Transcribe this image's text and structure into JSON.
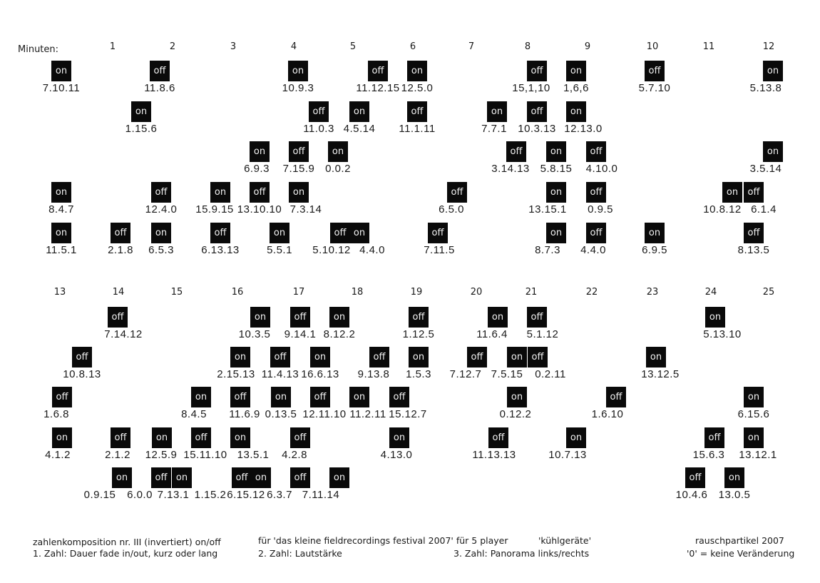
{
  "minutes_label": "Minuten:",
  "minutes_top": [
    "1",
    "2",
    "3",
    "4",
    "5",
    "6",
    "7",
    "8",
    "9",
    "10",
    "11",
    "12"
  ],
  "minutes_bottom": [
    "13",
    "14",
    "15",
    "16",
    "17",
    "18",
    "19",
    "20",
    "21",
    "22",
    "23",
    "24",
    "25"
  ],
  "events_top": [
    {
      "state": "on",
      "code": "7.10.11"
    },
    {
      "state": "off",
      "code": "11.8.6"
    },
    {
      "state": "on",
      "code": "10.9.3"
    },
    {
      "state": "off",
      "code": "11.12.15"
    },
    {
      "state": "on",
      "code": "12.5.0"
    },
    {
      "state": "off",
      "code": "15,1,10"
    },
    {
      "state": "on",
      "code": "1,6,6"
    },
    {
      "state": "off",
      "code": "5.7.10"
    },
    {
      "state": "on",
      "code": "5.13.8"
    },
    {
      "state": "on",
      "code": "1.15.6"
    },
    {
      "state": "off",
      "code": "11.0.3"
    },
    {
      "state": "on",
      "code": "4.5.14"
    },
    {
      "state": "off",
      "code": "11.1.11"
    },
    {
      "state": "on",
      "code": "7.7.1"
    },
    {
      "state": "off",
      "code": "10.3.13"
    },
    {
      "state": "on",
      "code": "12.13.0"
    },
    {
      "state": "on",
      "code": "6.9.3"
    },
    {
      "state": "off",
      "code": "7.15.9"
    },
    {
      "state": "on",
      "code": "0.0.2"
    },
    {
      "state": "off",
      "code": "3.14.13"
    },
    {
      "state": "on",
      "code": "5.8.15"
    },
    {
      "state": "off",
      "code": "4.10.0"
    },
    {
      "state": "on",
      "code": "3.5.14"
    },
    {
      "state": "on",
      "code": "8.4.7"
    },
    {
      "state": "off",
      "code": "12.4.0"
    },
    {
      "state": "on",
      "code": "15.9.15"
    },
    {
      "state": "off",
      "code": "13.10.10"
    },
    {
      "state": "on",
      "code": "7.3.14"
    },
    {
      "state": "off",
      "code": "6.5.0"
    },
    {
      "state": "on",
      "code": "13.15.1"
    },
    {
      "state": "off",
      "code": "0.9.5"
    },
    {
      "state": "on",
      "code": "10.8.12"
    },
    {
      "state": "off",
      "code": "6.1.4"
    },
    {
      "state": "on",
      "code": "11.5.1"
    },
    {
      "state": "off",
      "code": "2.1.8"
    },
    {
      "state": "on",
      "code": "6.5.3"
    },
    {
      "state": "off",
      "code": "6.13.13"
    },
    {
      "state": "on",
      "code": "5.5.1"
    },
    {
      "state": "off",
      "code": "5.10.12"
    },
    {
      "state": "on",
      "code": "4.4.0"
    },
    {
      "state": "off",
      "code": "7.11.5"
    },
    {
      "state": "on",
      "code": "8.7.3"
    },
    {
      "state": "off",
      "code": "4.4.0"
    },
    {
      "state": "on",
      "code": "6.9.5"
    },
    {
      "state": "off",
      "code": "8.13.5"
    }
  ],
  "events_bottom": [
    {
      "state": "off",
      "code": "7.14.12"
    },
    {
      "state": "on",
      "code": "10.3.5"
    },
    {
      "state": "off",
      "code": "9.14.1"
    },
    {
      "state": "on",
      "code": "8.12.2"
    },
    {
      "state": "off",
      "code": "1.12.5"
    },
    {
      "state": "on",
      "code": "11.6.4"
    },
    {
      "state": "off",
      "code": "5.1.12"
    },
    {
      "state": "on",
      "code": "5.13.10"
    },
    {
      "state": "off",
      "code": "10.8.13"
    },
    {
      "state": "on",
      "code": "2.15.13"
    },
    {
      "state": "off",
      "code": "11.4.13"
    },
    {
      "state": "on",
      "code": "16.6.13"
    },
    {
      "state": "off",
      "code": "9.13.8"
    },
    {
      "state": "on",
      "code": "1.5.3"
    },
    {
      "state": "off",
      "code": "7.12.7"
    },
    {
      "state": "on",
      "code": "7.5.15"
    },
    {
      "state": "off",
      "code": "0.2.11"
    },
    {
      "state": "on",
      "code": "13.12.5"
    },
    {
      "state": "off",
      "code": "1.6.8"
    },
    {
      "state": "on",
      "code": "8.4.5"
    },
    {
      "state": "off",
      "code": "11.6.9"
    },
    {
      "state": "on",
      "code": "0.13.5"
    },
    {
      "state": "off",
      "code": "12.11.10"
    },
    {
      "state": "on",
      "code": "11.2.11"
    },
    {
      "state": "off",
      "code": "15.12.7"
    },
    {
      "state": "on",
      "code": "0.12.2"
    },
    {
      "state": "off",
      "code": "1.6.10"
    },
    {
      "state": "on",
      "code": "6.15.6"
    },
    {
      "state": "on",
      "code": "4.1.2"
    },
    {
      "state": "off",
      "code": "2.1.2"
    },
    {
      "state": "on",
      "code": "12.5.9"
    },
    {
      "state": "off",
      "code": "15.11.10"
    },
    {
      "state": "on",
      "code": "13.5.1"
    },
    {
      "state": "off",
      "code": "4.2.8"
    },
    {
      "state": "on",
      "code": "4.13.0"
    },
    {
      "state": "off",
      "code": "11.13.13"
    },
    {
      "state": "on",
      "code": "10.7.13"
    },
    {
      "state": "off",
      "code": "15.6.3"
    },
    {
      "state": "on",
      "code": "13.12.1"
    },
    {
      "state": "on",
      "code": "0.9.15"
    },
    {
      "state": "off",
      "code": "6.0.0"
    },
    {
      "state": "on",
      "code": "7.13.1"
    },
    {
      "state": "off",
      "code": "1.15.2"
    },
    {
      "state": "on",
      "code": "6.15.12"
    },
    {
      "state": "off",
      "code": "6.3.7"
    },
    {
      "state": "on",
      "code": "7.11.14"
    },
    {
      "state": "off",
      "code": "10.4.6"
    },
    {
      "state": "on",
      "code": "13.0.5"
    }
  ],
  "footer": {
    "title": "zahlenkomposition nr. III (invertiert) on/off",
    "legend_1": "1. Zahl: Dauer fade in/out, kurz oder lang",
    "dedication": "für 'das kleine fieldrecordings festival 2007' für 5 player",
    "subtitle": "'kühlgeräte'",
    "legend_2": "2. Zahl: Lautstärke",
    "legend_3": "3. Zahl: Panorama links/rechts",
    "author": "rauschpartikel 2007",
    "legend_0": "'0' = keine Veränderung"
  }
}
